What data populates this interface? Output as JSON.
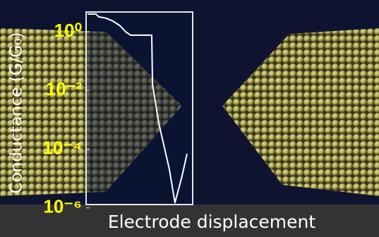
{
  "chart_data": {
    "type": "line",
    "ylabel": "Conductance (G/G₀)",
    "xlabel": "Electrode displacement",
    "log_scale": true,
    "grid": false,
    "xlim": [
      0,
      100
    ],
    "ylim": [
      1.3e-06,
      4.7
    ],
    "yticks": [
      {
        "value": 1,
        "label": "10⁰"
      },
      {
        "value": 0.01,
        "label": "10⁻²"
      },
      {
        "value": 0.0001,
        "label": "10⁻⁴"
      },
      {
        "value": 1e-06,
        "label": "10⁻⁶"
      }
    ],
    "series": [
      {
        "color": "#ffffff",
        "x": [
          1.3,
          9.3,
          11.9,
          18.5,
          25.2,
          31.8,
          37.1,
          41.7,
          61.6,
          62.3,
          68.2,
          78.1,
          83.4,
          90,
          94.7
        ],
        "values": [
          4,
          4,
          3.2,
          2.9,
          2.3,
          1.6,
          1,
          0.76,
          0.76,
          0.016,
          0.00076,
          2.1e-05,
          1.5e-06,
          1.2e-05,
          7e-05
        ]
      }
    ]
  }
}
